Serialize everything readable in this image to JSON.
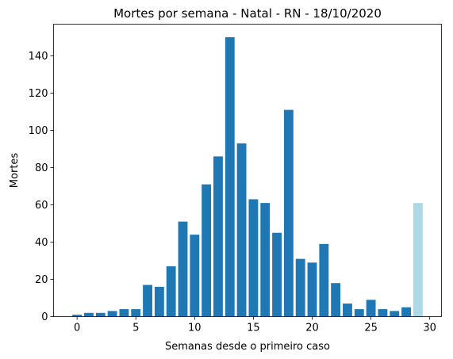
{
  "chart_data": {
    "type": "bar",
    "title": "Mortes por semana - Natal - RN - 18/10/2020",
    "xlabel": "Semanas desde o primeiro caso",
    "ylabel": "Mortes",
    "xlim": [
      -2,
      31
    ],
    "ylim": [
      0,
      157
    ],
    "x_ticks": [
      0,
      5,
      10,
      15,
      20,
      25,
      30
    ],
    "y_ticks": [
      0,
      20,
      40,
      60,
      80,
      100,
      120,
      140
    ],
    "grid": false,
    "colors": {
      "bar": "#1f77b4",
      "bar_partial": "#add8e6"
    },
    "x": [
      0,
      1,
      2,
      3,
      4,
      5,
      6,
      7,
      8,
      9,
      10,
      11,
      12,
      13,
      14,
      15,
      16,
      17,
      18,
      19,
      20,
      21,
      22,
      23,
      24,
      25,
      26,
      27,
      28,
      29
    ],
    "values": [
      1,
      2,
      2,
      3,
      4,
      4,
      17,
      16,
      27,
      51,
      44,
      71,
      86,
      150,
      93,
      63,
      61,
      45,
      111,
      31,
      29,
      39,
      18,
      7,
      4,
      9,
      4,
      3,
      5,
      61
    ],
    "highlight_last": true
  }
}
